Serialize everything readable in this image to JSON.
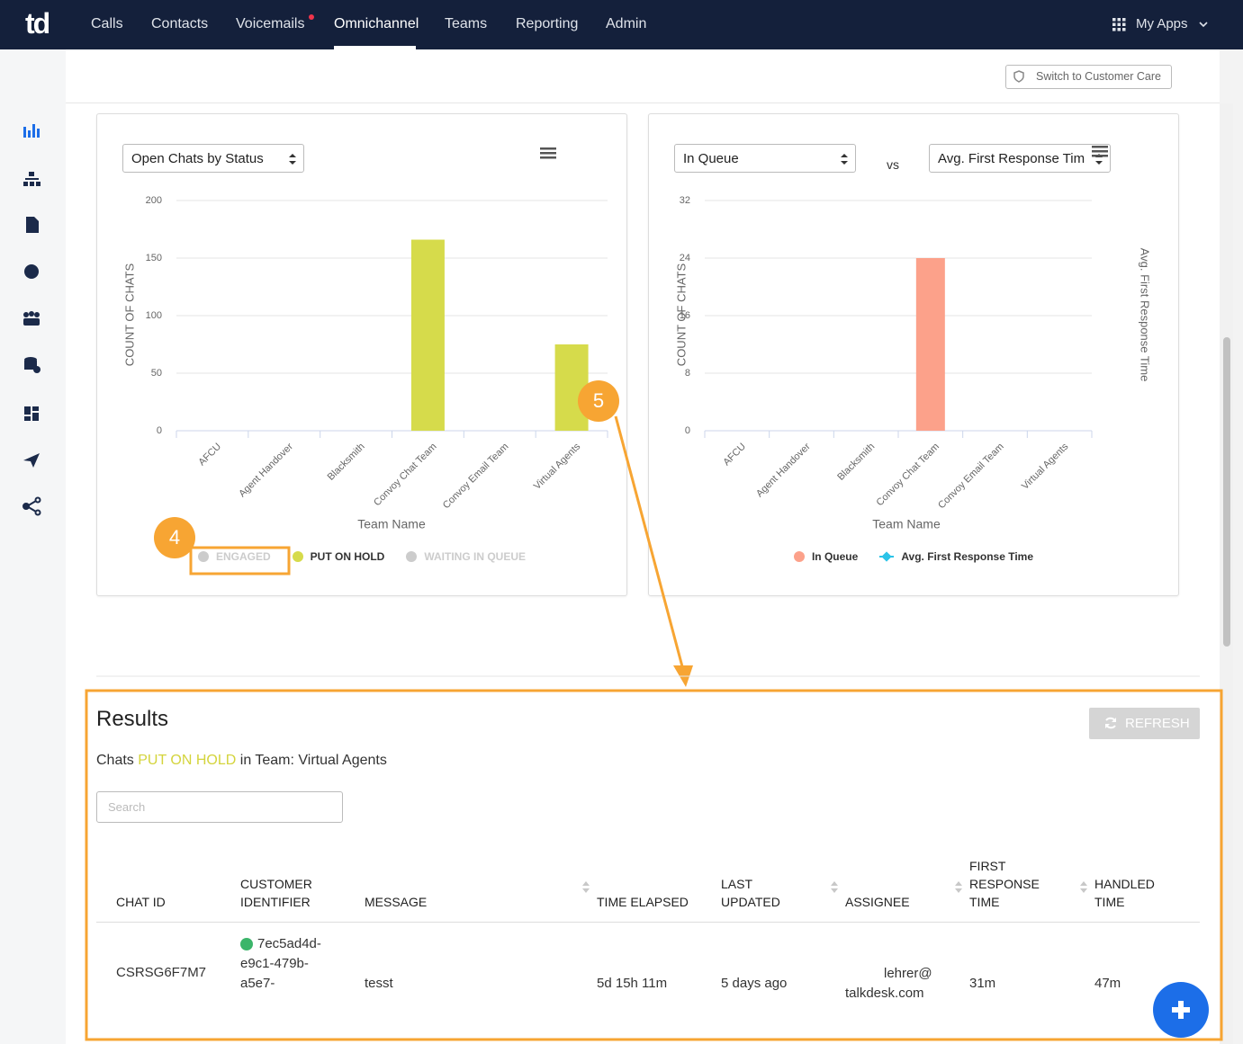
{
  "nav": {
    "logo": "td",
    "items": [
      "Calls",
      "Contacts",
      "Voicemails",
      "Omnichannel",
      "Teams",
      "Reporting",
      "Admin"
    ],
    "active": "Omnichannel",
    "apps": "My Apps"
  },
  "toolbar": {
    "switch_button": "Switch to Customer Care"
  },
  "chart_data": [
    {
      "type": "bar",
      "selector": "Open Chats by Status",
      "ylabel": "COUNT OF CHATS",
      "xlabel": "Team Name",
      "categories": [
        "AFCU",
        "Agent Handover",
        "Blacksmith",
        "Convoy Chat Team",
        "Convoy Email Team",
        "Virtual Agents"
      ],
      "series": [
        {
          "name": "ENGAGED",
          "color": "#cccccc",
          "visible": false,
          "values": [
            null,
            null,
            null,
            null,
            null,
            null
          ]
        },
        {
          "name": "PUT ON HOLD",
          "color": "#d6db4b",
          "values": [
            0,
            0,
            0,
            166,
            0,
            75
          ]
        },
        {
          "name": "WAITING IN QUEUE",
          "color": "#cccccc",
          "visible": false,
          "values": [
            null,
            null,
            null,
            null,
            null,
            null
          ]
        }
      ],
      "ylim": [
        0,
        200
      ],
      "yticks": [
        0,
        50,
        100,
        150,
        200
      ],
      "grid": true
    },
    {
      "type": "bar",
      "selector": "In Queue",
      "versus": "vs",
      "selector2": "Avg. First Response Tim",
      "ylabel": "COUNT OF CHATS",
      "y2label": "Avg. First Response Time",
      "xlabel": "Team Name",
      "categories": [
        "AFCU",
        "Agent Handover",
        "Blacksmith",
        "Convoy Chat Team",
        "Convoy Email Team",
        "Virtual Agents"
      ],
      "series": [
        {
          "name": "In Queue",
          "type": "bar",
          "color": "#fca18a",
          "values": [
            0,
            0,
            0,
            24,
            0,
            0
          ]
        },
        {
          "name": "Avg. First Response Time",
          "type": "line",
          "axis": "y2",
          "color": "#2bc3e8",
          "values": [
            null,
            null,
            null,
            null,
            null,
            null
          ]
        }
      ],
      "ylim": [
        0,
        32
      ],
      "yticks": [
        0,
        8,
        16,
        24,
        32
      ],
      "grid": true
    }
  ],
  "annotations": [
    "4",
    "5"
  ],
  "results": {
    "title": "Results",
    "refresh": "REFRESH",
    "subtitle": {
      "before": "Chats",
      "status": "PUT ON HOLD",
      "after": "in Team: Virtual Agents"
    },
    "search_placeholder": "Search",
    "table": {
      "columns": [
        "CHAT ID",
        "CUSTOMER IDENTIFIER",
        "MESSAGE",
        "TIME ELAPSED",
        "LAST UPDATED",
        "ASSIGNEE",
        "FIRST RESPONSE TIME",
        "HANDLED TIME"
      ],
      "rows": [
        {
          "chat_id": "CSRSG6F7M7",
          "customer_identifier": [
            "7ec5ad4d-",
            "e9c1-479b-",
            "a5e7-"
          ],
          "message": "tesst",
          "time_elapsed": "5d 15h 11m",
          "last_updated": "5 days ago",
          "assignee": [
            "lehrer@",
            "talkdesk.com"
          ],
          "first_response_time": "31m",
          "handled_time": "47m"
        }
      ]
    }
  }
}
